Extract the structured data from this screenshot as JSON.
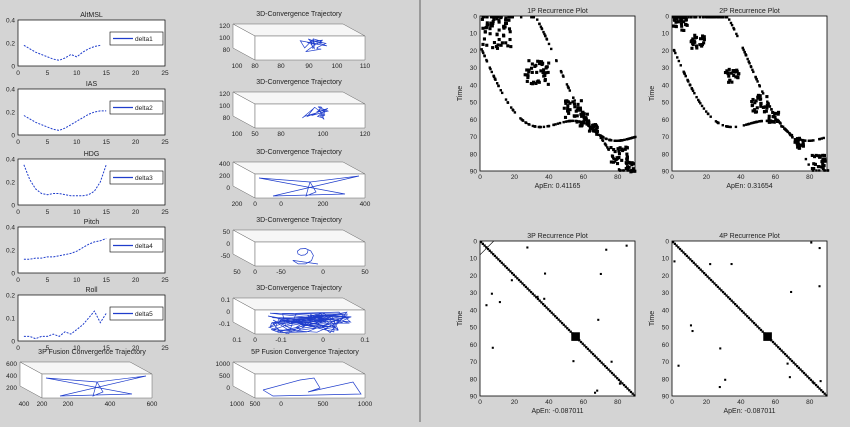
{
  "colors": {
    "figure_bg": "#d4d4d4",
    "divider": "#9a9a9a",
    "axes_bg": "#ffffff",
    "series": "#1f3dcc",
    "recurrence": "#000000"
  },
  "left_panel": {
    "line_plots": [
      {
        "title": "AltMSL",
        "legend": "delta1",
        "xticks": [
          "0",
          "5",
          "10",
          "15",
          "20",
          "25"
        ],
        "yticks": [
          "0",
          "0.2",
          "0.4"
        ]
      },
      {
        "title": "IAS",
        "legend": "delta2",
        "xticks": [
          "0",
          "5",
          "10",
          "15",
          "20",
          "25"
        ],
        "yticks": [
          "0",
          "0.2",
          "0.4"
        ]
      },
      {
        "title": "HDG",
        "legend": "delta3",
        "xticks": [
          "0",
          "5",
          "10",
          "15",
          "20",
          "25"
        ],
        "yticks": [
          "0",
          "0.2",
          "0.4"
        ]
      },
      {
        "title": "Pitch",
        "legend": "delta4",
        "xticks": [
          "0",
          "5",
          "10",
          "15",
          "20",
          "25"
        ],
        "yticks": [
          "0",
          "0.2",
          "0.4"
        ]
      },
      {
        "title": "Roll",
        "legend": "delta5",
        "xticks": [
          "0",
          "5",
          "10",
          "15",
          "20",
          "25"
        ],
        "yticks": [
          "0",
          "0.1",
          "0.2"
        ]
      }
    ],
    "traj_plots": [
      {
        "title": "3D-Convergence Trajectory",
        "z": [
          "120",
          "100",
          "80"
        ],
        "xb": [
          "100",
          "80"
        ],
        "xr": [
          "80",
          "90",
          "100",
          "110"
        ]
      },
      {
        "title": "3D-Convergence Trajectory",
        "z": [
          "120",
          "100",
          "80"
        ],
        "xb": [
          "100",
          "50"
        ],
        "xr": [
          "80",
          "100",
          "120"
        ]
      },
      {
        "title": "3D-Convergence Trajectory",
        "z": [
          "400",
          "200",
          "0"
        ],
        "xb": [
          "200",
          "0"
        ],
        "xr": [
          "0",
          "200",
          "400"
        ]
      },
      {
        "title": "3D-Convergence Trajectory",
        "z": [
          "50",
          "0",
          "-50"
        ],
        "xb": [
          "50",
          "0"
        ],
        "xr": [
          "-50",
          "0",
          "50"
        ]
      },
      {
        "title": "3D-Convergence Trajectory",
        "z": [
          "0.1",
          "0",
          "-0.1"
        ],
        "xb": [
          "0.1",
          "0"
        ],
        "xr": [
          "-0.1",
          "0",
          "0.1"
        ]
      },
      {
        "title": "3P Fusion Convergence Trajectory",
        "z": [
          "600",
          "400",
          "200"
        ],
        "xb": [
          "400",
          "200"
        ],
        "xr": [
          "200",
          "400",
          "600"
        ]
      },
      {
        "title": "5P Fusion Convergence Trajectory",
        "z": [
          "1000",
          "500",
          "0"
        ],
        "xb": [
          "1000",
          "500"
        ],
        "xr": [
          "0",
          "500",
          "1000"
        ]
      }
    ]
  },
  "right_panel": {
    "ylabel": "Time",
    "ticks": [
      "0",
      "10",
      "20",
      "30",
      "40",
      "50",
      "60",
      "70",
      "80",
      "90"
    ],
    "xticks": [
      "0",
      "20",
      "40",
      "60",
      "80"
    ],
    "plots": [
      {
        "title": "1P Recurrence Plot",
        "stat": "ApEn: 0.41165"
      },
      {
        "title": "2P Recurrence Plot",
        "stat": "ApEn: 0.31654"
      },
      {
        "title": "3P Recurrence Plot",
        "stat": "ApEn: -0.087011"
      },
      {
        "title": "4P Recurrence Plot",
        "stat": "ApEn: -0.087011"
      }
    ]
  },
  "chart_data": [
    {
      "type": "line",
      "title": "AltMSL",
      "series": [
        {
          "name": "delta1",
          "x": [
            1,
            2,
            3,
            4,
            5,
            6,
            7,
            8,
            9,
            10,
            11,
            12,
            13,
            14
          ],
          "values": [
            0.18,
            0.15,
            0.12,
            0.1,
            0.08,
            0.06,
            0.05,
            0.07,
            0.1,
            0.08,
            0.12,
            0.15,
            0.17,
            0.18
          ]
        }
      ],
      "xlim": [
        0,
        25
      ],
      "ylim": [
        0,
        0.4
      ]
    },
    {
      "type": "line",
      "title": "IAS",
      "series": [
        {
          "name": "delta2",
          "x": [
            1,
            2,
            3,
            4,
            5,
            6,
            7,
            8,
            9,
            10,
            11,
            12,
            13,
            14,
            15
          ],
          "values": [
            0.17,
            0.14,
            0.11,
            0.09,
            0.07,
            0.05,
            0.04,
            0.06,
            0.09,
            0.12,
            0.15,
            0.18,
            0.2,
            0.21,
            0.21
          ]
        }
      ],
      "xlim": [
        0,
        25
      ],
      "ylim": [
        0,
        0.4
      ]
    },
    {
      "type": "line",
      "title": "HDG",
      "series": [
        {
          "name": "delta3",
          "x": [
            1,
            2,
            3,
            4,
            5,
            6,
            7,
            8,
            9,
            10,
            11,
            12,
            13,
            14,
            15
          ],
          "values": [
            0.35,
            0.22,
            0.14,
            0.1,
            0.09,
            0.1,
            0.1,
            0.09,
            0.08,
            0.08,
            0.08,
            0.09,
            0.12,
            0.2,
            0.35
          ]
        }
      ],
      "xlim": [
        0,
        25
      ],
      "ylim": [
        0,
        0.4
      ]
    },
    {
      "type": "line",
      "title": "Pitch",
      "series": [
        {
          "name": "delta4",
          "x": [
            1,
            2,
            3,
            4,
            5,
            6,
            7,
            8,
            9,
            10,
            11,
            12,
            13,
            14,
            15
          ],
          "values": [
            0.12,
            0.12,
            0.13,
            0.13,
            0.14,
            0.14,
            0.15,
            0.16,
            0.17,
            0.19,
            0.22,
            0.25,
            0.27,
            0.28,
            0.3
          ]
        }
      ],
      "xlim": [
        0,
        25
      ],
      "ylim": [
        0,
        0.4
      ]
    },
    {
      "type": "line",
      "title": "Roll",
      "series": [
        {
          "name": "delta5",
          "x": [
            1,
            2,
            3,
            4,
            5,
            6,
            7,
            8,
            9,
            10,
            11,
            12,
            13,
            14,
            15
          ],
          "values": [
            0.02,
            0.02,
            0.01,
            0.02,
            0.02,
            0.03,
            0.02,
            0.04,
            0.03,
            0.05,
            0.07,
            0.1,
            0.13,
            0.08,
            0.12
          ]
        }
      ],
      "xlim": [
        0,
        25
      ],
      "ylim": [
        0,
        0.2
      ]
    },
    {
      "type": "table",
      "title": "1P Recurrence Plot",
      "note": "ApEn: 0.41165",
      "xlim": [
        0,
        90
      ],
      "ylim": [
        0,
        90
      ]
    },
    {
      "type": "table",
      "title": "2P Recurrence Plot",
      "note": "ApEn: 0.31654",
      "xlim": [
        0,
        90
      ],
      "ylim": [
        0,
        90
      ]
    },
    {
      "type": "table",
      "title": "3P Recurrence Plot",
      "note": "ApEn: -0.087011",
      "xlim": [
        0,
        90
      ],
      "ylim": [
        0,
        90
      ]
    },
    {
      "type": "table",
      "title": "4P Recurrence Plot",
      "note": "ApEn: -0.087011",
      "xlim": [
        0,
        90
      ],
      "ylim": [
        0,
        90
      ]
    }
  ]
}
